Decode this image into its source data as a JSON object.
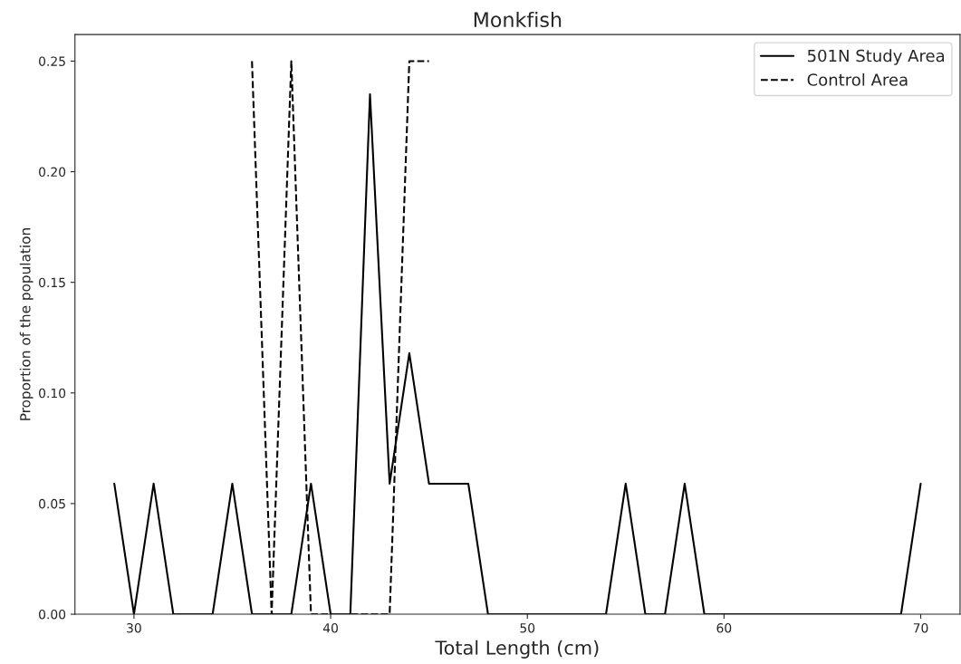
{
  "chart_data": {
    "type": "line",
    "title": "Monkfish",
    "xlabel": "Total Length (cm)",
    "ylabel": "Proportion of the population",
    "series": [
      {
        "name": "501N Study Area",
        "color": "#000000",
        "line_style": "solid",
        "x": [
          29,
          30,
          31,
          32,
          33,
          34,
          35,
          36,
          37,
          38,
          39,
          40,
          41,
          42,
          43,
          44,
          45,
          46,
          47,
          48,
          49,
          50,
          51,
          52,
          53,
          54,
          55,
          56,
          57,
          58,
          59,
          60,
          61,
          62,
          63,
          64,
          65,
          66,
          67,
          68,
          69,
          70
        ],
        "values": [
          0.059,
          0,
          0.059,
          0,
          0,
          0,
          0.059,
          0,
          0,
          0,
          0.059,
          0,
          0,
          0.235,
          0.059,
          0.118,
          0.059,
          0.059,
          0.059,
          0,
          0,
          0,
          0,
          0,
          0,
          0,
          0.059,
          0,
          0,
          0.059,
          0,
          0,
          0,
          0,
          0,
          0,
          0,
          0,
          0,
          0,
          0,
          0.059
        ]
      },
      {
        "name": "Control Area",
        "color": "#000000",
        "line_style": "dashed",
        "x": [
          36,
          37,
          38,
          39,
          40,
          41,
          42,
          43,
          44,
          45
        ],
        "values": [
          0.25,
          0,
          0.25,
          0,
          0,
          0,
          0,
          0,
          0.25,
          0.25
        ]
      }
    ],
    "xlim": [
      27,
      72
    ],
    "xticks": [
      30,
      40,
      50,
      60,
      70
    ],
    "ylim": [
      0,
      0.262
    ],
    "yticks": [
      {
        "value": 0,
        "label": "0.00"
      },
      {
        "value": 0.05,
        "label": "0.05"
      },
      {
        "value": 0.1,
        "label": "0.10"
      },
      {
        "value": 0.15,
        "label": "0.15"
      },
      {
        "value": 0.2,
        "label": "0.20"
      },
      {
        "value": 0.25,
        "label": "0.25"
      }
    ],
    "legend": "top right",
    "grid": false
  }
}
